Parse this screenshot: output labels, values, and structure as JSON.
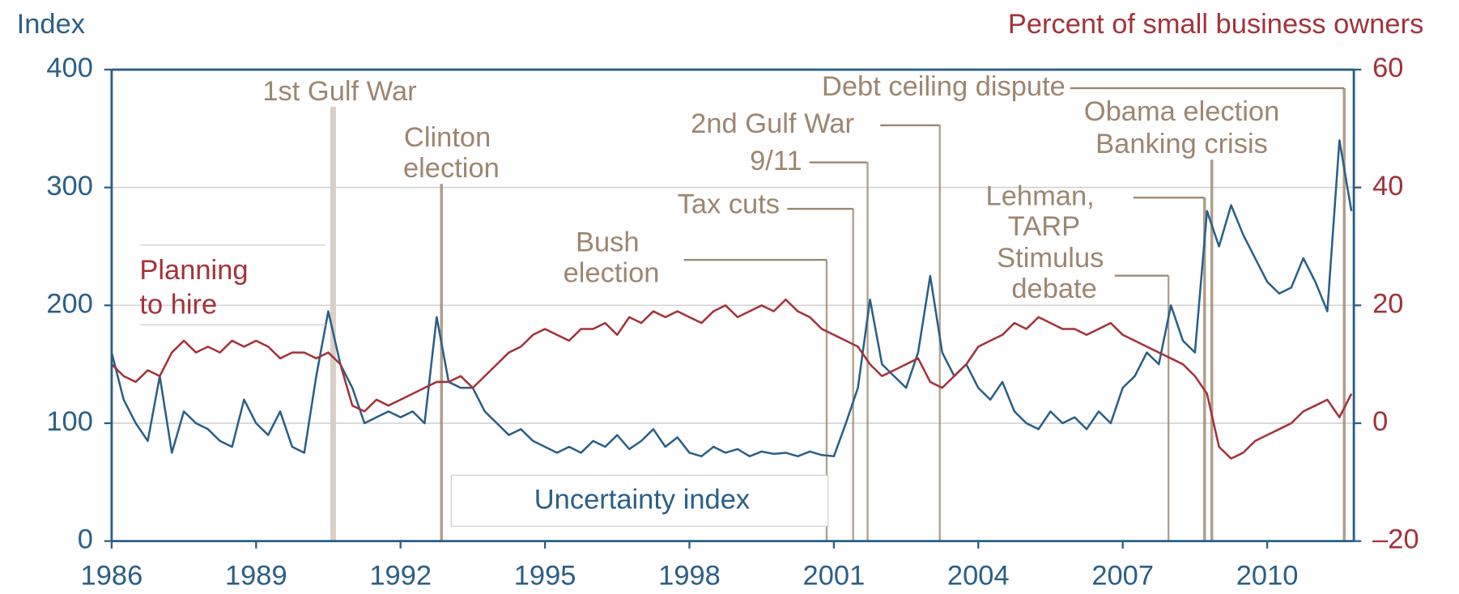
{
  "chart_data": {
    "type": "line",
    "ylabel": "Index",
    "y2label": "Percent of small business owners",
    "xlim": [
      1986,
      2011.8
    ],
    "xticks": [
      1986,
      1989,
      1992,
      1995,
      1998,
      2001,
      2004,
      2007,
      2010
    ],
    "ylim": [
      0,
      400
    ],
    "yticks": [
      0,
      100,
      200,
      300,
      400
    ],
    "y2lim": [
      -20,
      60
    ],
    "y2ticks": [
      {
        "value": -20,
        "label": "–20"
      },
      0,
      20,
      40,
      60
    ],
    "grid": true,
    "x": [
      1986,
      1986.25,
      1986.5,
      1986.75,
      1987,
      1987.25,
      1987.5,
      1987.75,
      1988,
      1988.25,
      1988.5,
      1988.75,
      1989,
      1989.25,
      1989.5,
      1989.75,
      1990,
      1990.25,
      1990.5,
      1990.75,
      1991,
      1991.25,
      1991.5,
      1991.75,
      1992,
      1992.25,
      1992.5,
      1992.75,
      1993,
      1993.25,
      1993.5,
      1993.75,
      1994,
      1994.25,
      1994.5,
      1994.75,
      1995,
      1995.25,
      1995.5,
      1995.75,
      1996,
      1996.25,
      1996.5,
      1996.75,
      1997,
      1997.25,
      1997.5,
      1997.75,
      1998,
      1998.25,
      1998.5,
      1998.75,
      1999,
      1999.25,
      1999.5,
      1999.75,
      2000,
      2000.25,
      2000.5,
      2000.75,
      2001,
      2001.25,
      2001.5,
      2001.75,
      2002,
      2002.25,
      2002.5,
      2002.75,
      2003,
      2003.25,
      2003.5,
      2003.75,
      2004,
      2004.25,
      2004.5,
      2004.75,
      2005,
      2005.25,
      2005.5,
      2005.75,
      2006,
      2006.25,
      2006.5,
      2006.75,
      2007,
      2007.25,
      2007.5,
      2007.75,
      2008,
      2008.25,
      2008.5,
      2008.75,
      2009,
      2009.25,
      2009.5,
      2009.75,
      2010,
      2010.25,
      2010.5,
      2010.75,
      2011,
      2011.25,
      2011.5,
      2011.75
    ],
    "series": [
      {
        "name": "Uncertainty index",
        "color": "#2a5f86",
        "values": [
          160,
          120,
          100,
          85,
          140,
          75,
          110,
          100,
          95,
          85,
          80,
          120,
          100,
          90,
          110,
          80,
          75,
          140,
          195,
          150,
          130,
          100,
          105,
          110,
          105,
          110,
          100,
          190,
          135,
          130,
          130,
          110,
          100,
          90,
          95,
          85,
          80,
          75,
          80,
          75,
          85,
          80,
          90,
          78,
          85,
          95,
          80,
          88,
          75,
          72,
          80,
          75,
          78,
          72,
          76,
          74,
          75,
          72,
          76,
          73,
          72,
          100,
          130,
          205,
          150,
          140,
          130,
          160,
          225,
          160,
          140,
          150,
          130,
          120,
          135,
          110,
          100,
          95,
          110,
          100,
          105,
          95,
          110,
          100,
          130,
          140,
          160,
          150,
          200,
          170,
          160,
          280,
          250,
          285,
          260,
          240,
          220,
          210,
          215,
          240,
          220,
          195,
          340,
          280
        ]
      },
      {
        "name": "Planning to hire",
        "color": "#a3323a",
        "axis": "y2",
        "values": [
          10,
          8,
          7,
          9,
          8,
          12,
          14,
          12,
          13,
          12,
          14,
          13,
          14,
          13,
          11,
          12,
          12,
          11,
          12,
          10,
          3,
          2,
          4,
          3,
          4,
          5,
          6,
          7,
          7,
          8,
          6,
          8,
          10,
          12,
          13,
          15,
          16,
          15,
          14,
          16,
          16,
          17,
          15,
          18,
          17,
          19,
          18,
          19,
          18,
          17,
          19,
          20,
          18,
          19,
          20,
          19,
          21,
          19,
          18,
          16,
          15,
          14,
          13,
          10,
          8,
          9,
          10,
          11,
          7,
          6,
          8,
          10,
          13,
          14,
          15,
          17,
          16,
          18,
          17,
          16,
          16,
          15,
          16,
          17,
          15,
          14,
          13,
          12,
          11,
          10,
          8,
          5,
          -4,
          -6,
          -5,
          -3,
          -2,
          -1,
          0,
          2,
          3,
          4,
          1,
          5
        ]
      }
    ],
    "annotations": [
      {
        "text": "1st Gulf War",
        "x": 1990.6
      },
      {
        "text": "Clinton election",
        "x": 1992.85
      },
      {
        "text": "Bush election",
        "x": 2000.85
      },
      {
        "text": "Tax cuts",
        "x": 2001.4
      },
      {
        "text": "9/11",
        "x": 2001.7
      },
      {
        "text": "2nd Gulf War",
        "x": 2003.2
      },
      {
        "text": "Debt ceiling dispute",
        "x": 2011.6
      },
      {
        "text": "Obama election",
        "x": 2008.85
      },
      {
        "text": "Banking crisis",
        "x": 2008.85
      },
      {
        "text": "Lehman, TARP",
        "x": 2008.7
      },
      {
        "text": "Stimulus debate",
        "x": 2007.95
      }
    ]
  }
}
